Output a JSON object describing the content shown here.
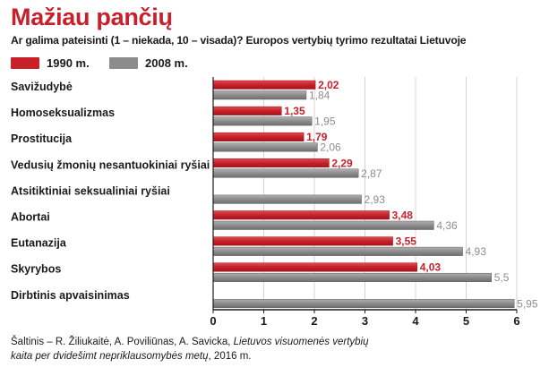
{
  "header": {
    "title": "Mažiau pančių",
    "subtitle": "Ar galima pateisinti (1 – niekada, 10 – visada)? Europos vertybių tyrimo rezultatai Lietuvoje"
  },
  "colors": {
    "series_1990": "#c8202a",
    "series_2008": "#8c8c8c",
    "title": "#c8202a",
    "label_1990": "#c8202a",
    "label_2008": "#8c8c8c"
  },
  "chart_data": {
    "type": "bar",
    "orientation": "horizontal",
    "title": "Mažiau pančių",
    "categories": [
      "Savižudybė",
      "Homoseksualizmas",
      "Prostitucija",
      "Vedusių žmonių nesantuokiniai ryšiai",
      "Atsitiktiniai seksualiniai ryšiai",
      "Abortai",
      "Eutanazija",
      "Skyrybos",
      "Dirbtinis apvaisinimas"
    ],
    "series": [
      {
        "name": "1990 m.",
        "values": [
          2.02,
          1.35,
          1.79,
          2.29,
          null,
          3.48,
          3.55,
          4.03,
          null
        ],
        "labels": [
          "2,02",
          "1,35",
          "1,79",
          "2,29",
          "",
          "3,48",
          "3,55",
          "4,03",
          ""
        ]
      },
      {
        "name": "2008 m.",
        "values": [
          1.84,
          1.95,
          2.06,
          2.87,
          2.93,
          4.36,
          4.93,
          5.5,
          5.95
        ],
        "labels": [
          "1,84",
          "1,95",
          "2,06",
          "2,87",
          "2,93",
          "4,36",
          "4,93",
          "5,5",
          "5,95"
        ]
      }
    ],
    "xlim": [
      0,
      6
    ],
    "xticks": [
      0,
      1,
      2,
      3,
      4,
      5,
      6
    ],
    "xtick_labels": [
      "0",
      "1",
      "2",
      "3",
      "4",
      "5",
      "6"
    ],
    "grid": true,
    "legend": "top-left"
  },
  "source": {
    "prefix": "Šaltinis – R. Žiliukaitė, A. Poviliūnas, A. Savicka, ",
    "book_title": "Lietuvos visuomenės vertybių kaita per dvidešimt nepriklausomybės metų",
    "suffix": ", 2016 m."
  }
}
